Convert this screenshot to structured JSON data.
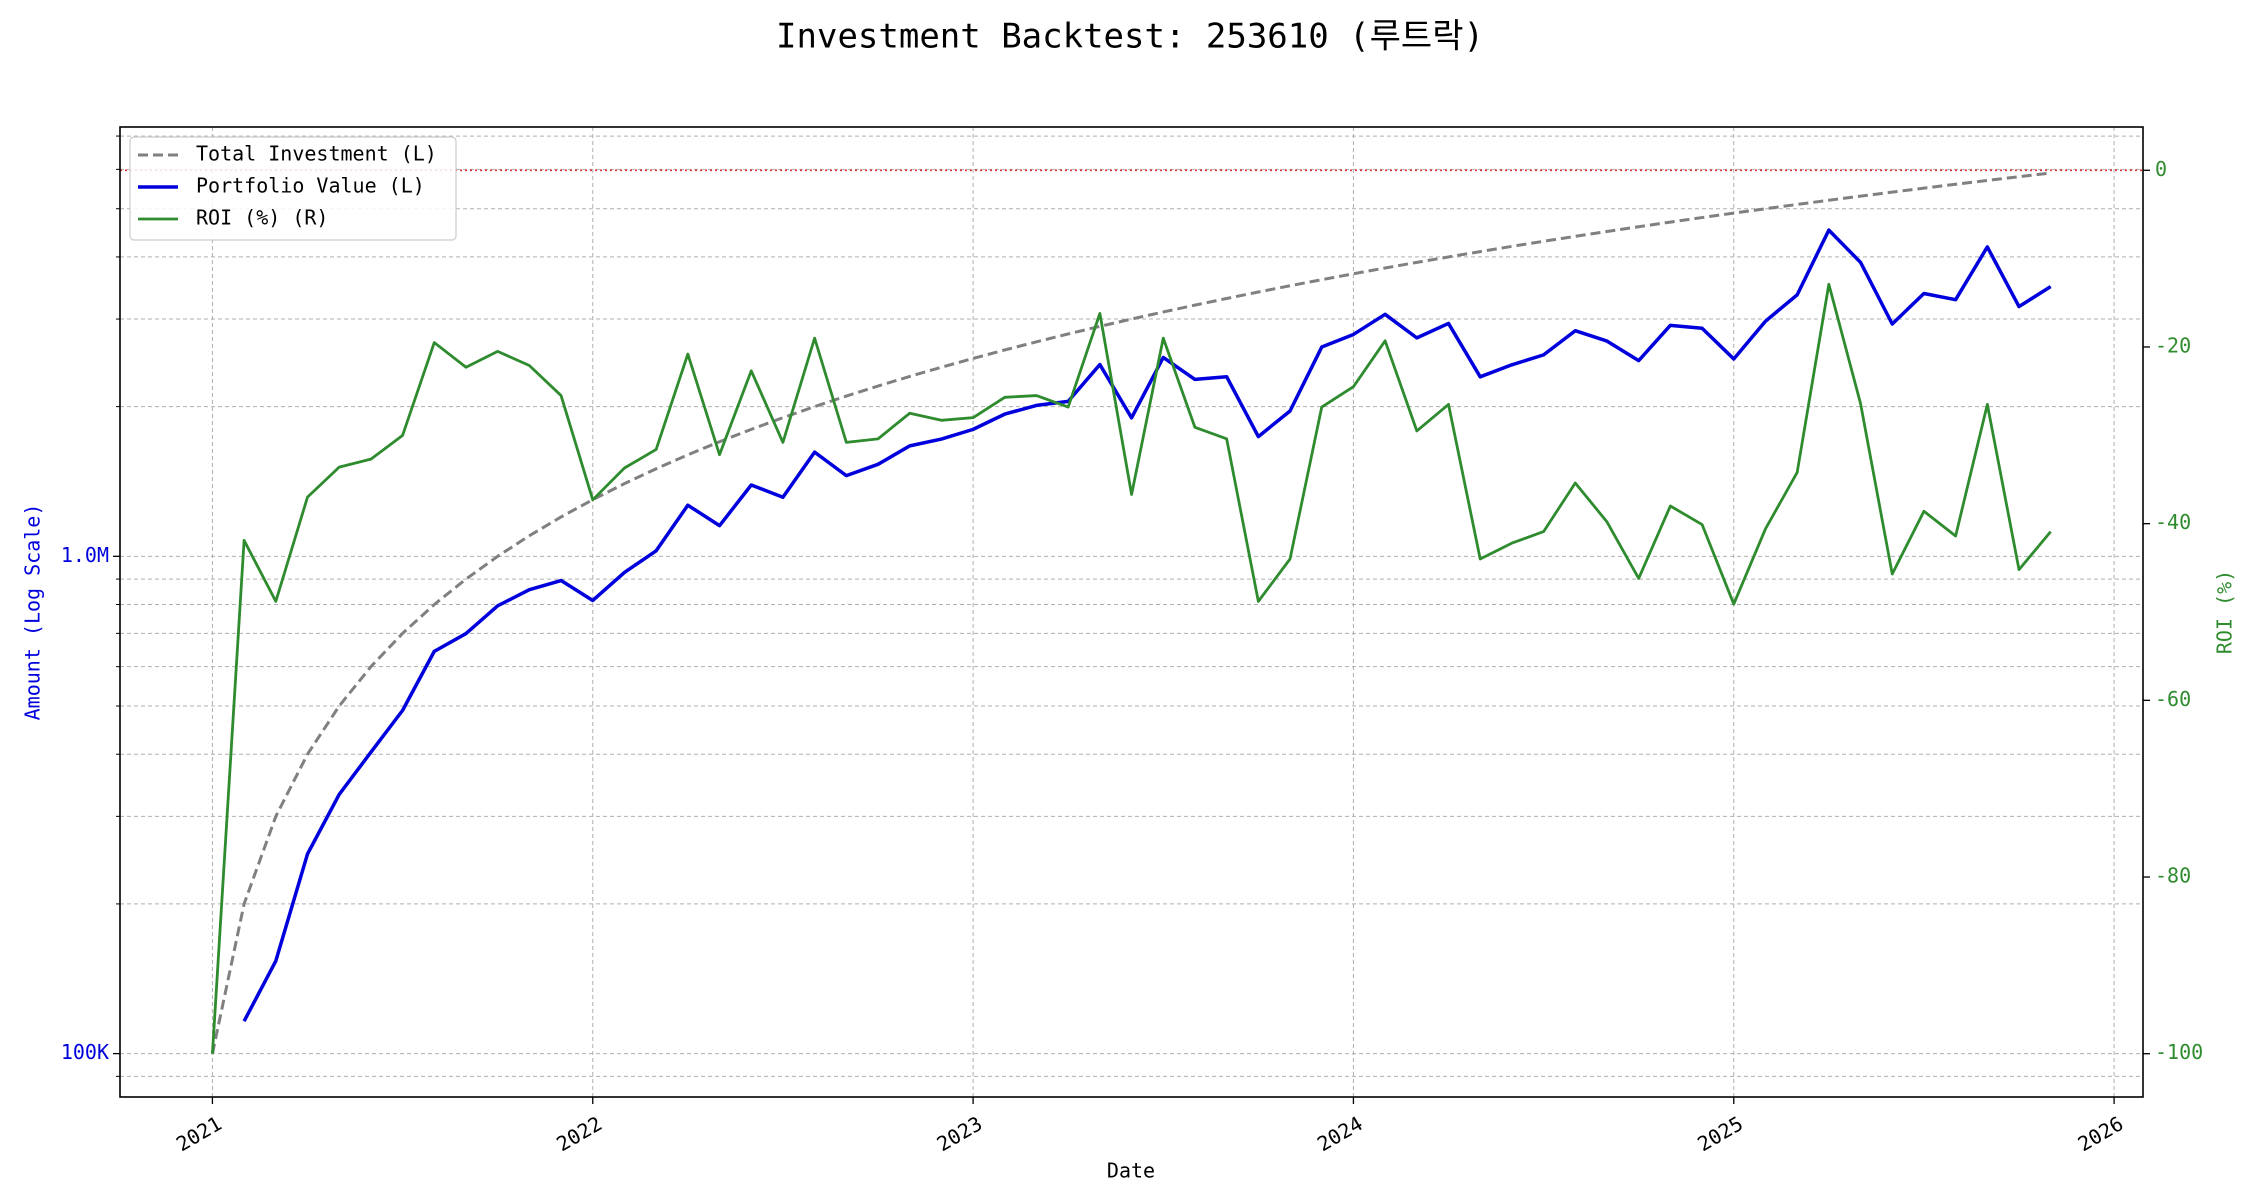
{
  "chart_data": {
    "type": "line",
    "title": "Investment Backtest: 253610 (루트락)",
    "xlabel": "Date",
    "ylabel": "Amount (Log Scale)",
    "y2label": "ROI (%)",
    "ylog": true,
    "grid": true,
    "legend_loc": "upper left",
    "xlim": [
      2020.757,
      2026.076
    ],
    "xticks": [
      2021,
      2022,
      2023,
      2024,
      2025,
      2026
    ],
    "ylim": [
      81800,
      7300000
    ],
    "yticks": [
      {
        "value": 100000,
        "label": "100K"
      },
      {
        "value": 1000000,
        "label": "1.0M"
      }
    ],
    "yminorticks": [
      90000,
      200000,
      300000,
      400000,
      500000,
      600000,
      700000,
      800000,
      900000,
      2000000,
      3000000,
      4000000,
      5000000,
      6000000,
      7000000
    ],
    "y2lim": [
      -104.9,
      4.9
    ],
    "y2ticks": [
      -100,
      -80,
      -60,
      -40,
      -20,
      0
    ],
    "hline": {
      "value": 0,
      "axis": "y2",
      "color": "#e03030"
    },
    "x": [
      2021,
      2021.0833,
      2021.1667,
      2021.25,
      2021.3333,
      2021.4167,
      2021.5,
      2021.5833,
      2021.6667,
      2021.75,
      2021.8333,
      2021.9167,
      2022,
      2022.0833,
      2022.1667,
      2022.25,
      2022.3333,
      2022.4167,
      2022.5,
      2022.5833,
      2022.6667,
      2022.75,
      2022.8333,
      2022.9167,
      2023,
      2023.0833,
      2023.1667,
      2023.25,
      2023.3333,
      2023.4167,
      2023.5,
      2023.5833,
      2023.6667,
      2023.75,
      2023.8333,
      2023.9167,
      2024,
      2024.0833,
      2024.1667,
      2024.25,
      2024.3333,
      2024.4167,
      2024.5,
      2024.5833,
      2024.6667,
      2024.75,
      2024.8333,
      2024.9167,
      2025,
      2025.0833,
      2025.1667,
      2025.25,
      2025.3333,
      2025.4167,
      2025.5,
      2025.5833,
      2025.6667,
      2025.75,
      2025.8333
    ],
    "series": [
      {
        "name": "Total Investment (L)",
        "color": "#808080",
        "dash": true,
        "width": 3,
        "values": [
          100000,
          200000,
          300000,
          400000,
          500000,
          600000,
          700000,
          800000,
          900000,
          1000000,
          1100000,
          1200000,
          1300000,
          1400000,
          1500000,
          1600000,
          1700000,
          1800000,
          1900000,
          2000000,
          2100000,
          2200000,
          2300000,
          2400000,
          2500000,
          2600000,
          2700000,
          2800000,
          2900000,
          3000000,
          3100000,
          3200000,
          3300000,
          3400000,
          3500000,
          3600000,
          3700000,
          3800000,
          3900000,
          4000000,
          4100000,
          4200000,
          4300000,
          4400000,
          4500000,
          4600000,
          4700000,
          4800000,
          4900000,
          5000000,
          5100000,
          5200000,
          5300000,
          5400000,
          5500000,
          5600000,
          5700000,
          5800000,
          5900000
        ]
      },
      {
        "name": "Portfolio Value (L)",
        "color": "#0000dd",
        "width": 3.5,
        "values": [
          null,
          116200,
          153600,
          252000,
          332000,
          403800,
          490000,
          644000,
          699300,
          795000,
          856900,
          894000,
          815100,
          928200,
          1026000,
          1267200,
          1152600,
          1391400,
          1314800,
          1620000,
          1453200,
          1531200,
          1667500,
          1720800,
          1800000,
          1931800,
          2011500,
          2049600,
          2430200,
          1899000,
          2511000,
          2268800,
          2296800,
          1740800,
          1960000,
          2635200,
          2793500,
          3066600,
          2749500,
          2940000,
          2296000,
          2427600,
          2541300,
          2842400,
          2709000,
          2474800,
          2914000,
          2875200,
          2494100,
          2970000,
          3355800,
          4529200,
          3900800,
          2932200,
          3377000,
          3281600,
          4189500,
          3178400,
          3486900
        ]
      },
      {
        "name": "ROI (%) (R)",
        "color": "#2e8b2e",
        "axis": "y2",
        "width": 2.8,
        "values": [
          -100,
          -41.9,
          -48.8,
          -37,
          -33.6,
          -32.7,
          -30,
          -19.5,
          -22.3,
          -20.5,
          -22.1,
          -25.5,
          -37.3,
          -33.7,
          -31.6,
          -20.8,
          -32.2,
          -22.7,
          -30.8,
          -19,
          -30.8,
          -30.4,
          -27.5,
          -28.3,
          -28,
          -25.7,
          -25.5,
          -26.8,
          -16.2,
          -36.7,
          -19,
          -29.1,
          -30.4,
          -48.8,
          -44,
          -26.8,
          -24.5,
          -19.3,
          -29.5,
          -26.5,
          -44,
          -42.2,
          -40.9,
          -35.4,
          -39.8,
          -46.2,
          -38,
          -40.1,
          -49.1,
          -40.6,
          -34.2,
          -12.9,
          -26.4,
          -45.7,
          -38.6,
          -41.4,
          -26.5,
          -45.2,
          -40.9
        ]
      }
    ]
  }
}
